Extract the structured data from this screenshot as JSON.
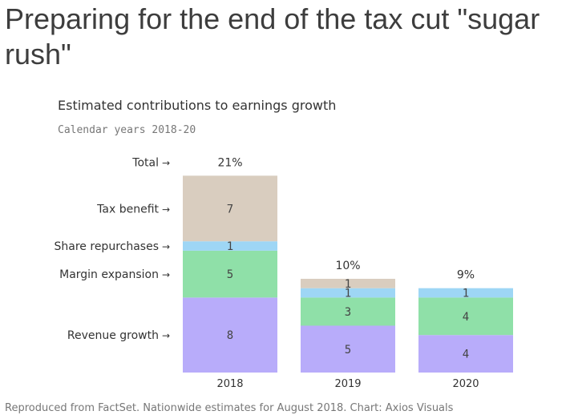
{
  "headline": "Preparing for the end of the tax cut \"sugar rush\"",
  "footer": "Reproduced from FactSet. Nationwide estimates for August 2018. Chart: Axios Visuals",
  "chart_data": {
    "type": "bar",
    "stacked": true,
    "title": "Estimated contributions to earnings growth",
    "subtitle": "Calendar years 2018-20",
    "categories": [
      "2018",
      "2019",
      "2020"
    ],
    "totals": [
      "21%",
      "10%",
      "9%"
    ],
    "total_label": "Total",
    "series": [
      {
        "name": "Revenue growth",
        "values": [
          8,
          5,
          4
        ],
        "color": "#b8acfa"
      },
      {
        "name": "Margin expansion",
        "values": [
          5,
          3,
          4
        ],
        "color": "#8fe0a8"
      },
      {
        "name": "Share repurchases",
        "values": [
          1,
          1,
          1
        ],
        "color": "#9ed6f5"
      },
      {
        "name": "Tax benefit",
        "values": [
          7,
          1,
          0
        ],
        "color": "#d9cdbf"
      }
    ],
    "ylim": [
      0,
      21
    ],
    "legend_placement": "left, labels with arrows pointing at 2018 bar segments",
    "grid": false
  }
}
